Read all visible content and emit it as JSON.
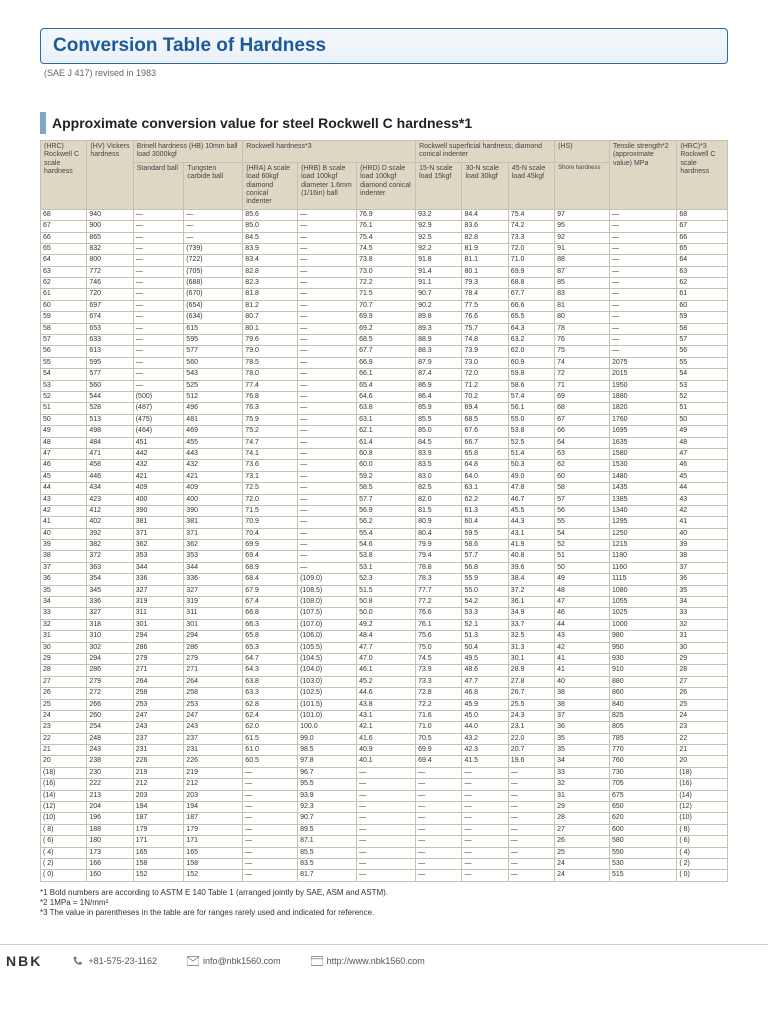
{
  "title": "Conversion Table of Hardness",
  "subtitle": "(SAE J 417) revised in 1983",
  "section_title": "Approximate conversion value for steel Rockwell C hardness*1",
  "headers": {
    "grp_brinell": "Brinell hardness (HB) 10mm ball load 3000kgf",
    "grp_rockwell": "Rockwell hardness*3",
    "grp_super": "Rockwell superficial hardness; diamond conical indenter",
    "grp_hs": "(HS)",
    "c1": "(HRC) Rockwell C scale hardness",
    "c2": "(HV) Vickers hardness",
    "c3": "Standard ball",
    "c4": "Tungsten carbide ball",
    "c5": "(HRA) A scale load 60kgf diamond conical indenter",
    "c6": "(HRB) B scale load 100kgf diameter 1.6mm (1/16in) ball",
    "c7": "(HRD) D scale load 100kgf diamond conical indenter",
    "c8": "15-N scale load 15kgf",
    "c9": "30-N scale load 30kgf",
    "c10": "45-N scale load 45kgf",
    "c11": "Shore hardness",
    "c12": "Tensile strength*2 (approximate value) MPa",
    "c13": "(HRC)*3 Rockwell C scale hardness"
  },
  "rows": [
    [
      "68",
      "940",
      "—",
      "—",
      "85.6",
      "—",
      "76.9",
      "93.2",
      "84.4",
      "75.4",
      "97",
      "—",
      "68"
    ],
    [
      "67",
      "900",
      "—",
      "—",
      "85.0",
      "—",
      "76.1",
      "92.9",
      "83.6",
      "74.2",
      "95",
      "—",
      "67"
    ],
    [
      "66",
      "865",
      "—",
      "—",
      "84.5",
      "—",
      "75.4",
      "92.5",
      "82.8",
      "73.3",
      "92",
      "—",
      "66"
    ],
    [
      "65",
      "832",
      "—",
      "(739)",
      "83.9",
      "—",
      "74.5",
      "92.2",
      "81.9",
      "72.0",
      "91",
      "—",
      "65"
    ],
    [
      "64",
      "800",
      "—",
      "(722)",
      "83.4",
      "—",
      "73.8",
      "91.8",
      "81.1",
      "71.0",
      "88",
      "—",
      "64"
    ],
    [
      "63",
      "772",
      "—",
      "(705)",
      "82.8",
      "—",
      "73.0",
      "91.4",
      "80.1",
      "69.9",
      "87",
      "—",
      "63"
    ],
    [
      "62",
      "746",
      "—",
      "(688)",
      "82.3",
      "—",
      "72.2",
      "91.1",
      "79.3",
      "68.8",
      "85",
      "—",
      "62"
    ],
    [
      "61",
      "720",
      "—",
      "(670)",
      "81.8",
      "—",
      "71.5",
      "90.7",
      "78.4",
      "67.7",
      "83",
      "—",
      "61"
    ],
    [
      "60",
      "697",
      "—",
      "(654)",
      "81.2",
      "—",
      "70.7",
      "90.2",
      "77.5",
      "66.6",
      "81",
      "—",
      "60"
    ],
    [
      "59",
      "674",
      "—",
      "(634)",
      "80.7",
      "—",
      "69.9",
      "89.8",
      "76.6",
      "65.5",
      "80",
      "—",
      "59"
    ],
    [
      "58",
      "653",
      "—",
      "615",
      "80.1",
      "—",
      "69.2",
      "89.3",
      "75.7",
      "64.3",
      "78",
      "—",
      "58"
    ],
    [
      "57",
      "633",
      "—",
      "595",
      "79.6",
      "—",
      "68.5",
      "88.9",
      "74.8",
      "63.2",
      "76",
      "—",
      "57"
    ],
    [
      "56",
      "613",
      "—",
      "577",
      "79.0",
      "—",
      "67.7",
      "88.3",
      "73.9",
      "62.0",
      "75",
      "—",
      "56"
    ],
    [
      "55",
      "595",
      "—",
      "560",
      "78.5",
      "—",
      "66.9",
      "87.9",
      "73.0",
      "60.9",
      "74",
      "2075",
      "55"
    ],
    [
      "54",
      "577",
      "—",
      "543",
      "78.0",
      "—",
      "66.1",
      "87.4",
      "72.0",
      "59.8",
      "72",
      "2015",
      "54"
    ],
    [
      "53",
      "560",
      "—",
      "525",
      "77.4",
      "—",
      "65.4",
      "86.9",
      "71.2",
      "58.6",
      "71",
      "1950",
      "53"
    ],
    [
      "52",
      "544",
      "(500)",
      "512",
      "76.8",
      "—",
      "64.6",
      "86.4",
      "70.2",
      "57.4",
      "69",
      "1880",
      "52"
    ],
    [
      "51",
      "528",
      "(487)",
      "496",
      "76.3",
      "—",
      "63.8",
      "85.9",
      "69.4",
      "56.1",
      "68",
      "1820",
      "51"
    ],
    [
      "50",
      "513",
      "(475)",
      "481",
      "75.9",
      "—",
      "63.1",
      "85.5",
      "68.5",
      "55.0",
      "67",
      "1760",
      "50"
    ],
    [
      "49",
      "498",
      "(464)",
      "469",
      "75.2",
      "—",
      "62.1",
      "85.0",
      "67.6",
      "53.8",
      "66",
      "1695",
      "49"
    ],
    [
      "48",
      "484",
      "451",
      "455",
      "74.7",
      "—",
      "61.4",
      "84.5",
      "66.7",
      "52.5",
      "64",
      "1635",
      "48"
    ],
    [
      "47",
      "471",
      "442",
      "443",
      "74.1",
      "—",
      "60.8",
      "83.9",
      "65.8",
      "51.4",
      "63",
      "1580",
      "47"
    ],
    [
      "46",
      "458",
      "432",
      "432",
      "73.6",
      "—",
      "60.0",
      "83.5",
      "64.8",
      "50.3",
      "62",
      "1530",
      "46"
    ],
    [
      "45",
      "446",
      "421",
      "421",
      "73.1",
      "—",
      "59.2",
      "83.0",
      "64.0",
      "49.0",
      "60",
      "1480",
      "45"
    ],
    [
      "44",
      "434",
      "409",
      "409",
      "72.5",
      "—",
      "58.5",
      "82.5",
      "63.1",
      "47.8",
      "58",
      "1435",
      "44"
    ],
    [
      "43",
      "423",
      "400",
      "400",
      "72.0",
      "—",
      "57.7",
      "82.0",
      "62.2",
      "46.7",
      "57",
      "1385",
      "43"
    ],
    [
      "42",
      "412",
      "390",
      "390",
      "71.5",
      "—",
      "56.9",
      "81.5",
      "61.3",
      "45.5",
      "56",
      "1340",
      "42"
    ],
    [
      "41",
      "402",
      "381",
      "381",
      "70.9",
      "—",
      "56.2",
      "80.9",
      "60.4",
      "44.3",
      "55",
      "1295",
      "41"
    ],
    [
      "40",
      "392",
      "371",
      "371",
      "70.4",
      "—",
      "55.4",
      "80.4",
      "59.5",
      "43.1",
      "54",
      "1250",
      "40"
    ],
    [
      "39",
      "382",
      "362",
      "362",
      "69.9",
      "—",
      "54.6",
      "79.9",
      "58.6",
      "41.9",
      "52",
      "1215",
      "39"
    ],
    [
      "38",
      "372",
      "353",
      "353",
      "69.4",
      "—",
      "53.8",
      "79.4",
      "57.7",
      "40.8",
      "51",
      "1180",
      "38"
    ],
    [
      "37",
      "363",
      "344",
      "344",
      "68.9",
      "—",
      "53.1",
      "78.8",
      "56.8",
      "39.6",
      "50",
      "1160",
      "37"
    ],
    [
      "36",
      "354",
      "336",
      "336",
      "68.4",
      "(109.0)",
      "52.3",
      "78.3",
      "55.9",
      "38.4",
      "49",
      "1115",
      "36"
    ],
    [
      "35",
      "345",
      "327",
      "327",
      "67.9",
      "(108.5)",
      "51.5",
      "77.7",
      "55.0",
      "37.2",
      "48",
      "1080",
      "35"
    ],
    [
      "34",
      "336",
      "319",
      "319",
      "67.4",
      "(108.0)",
      "50.8",
      "77.2",
      "54.2",
      "36.1",
      "47",
      "1055",
      "34"
    ],
    [
      "33",
      "327",
      "311",
      "311",
      "66.8",
      "(107.5)",
      "50.0",
      "76.6",
      "53.3",
      "34.9",
      "46",
      "1025",
      "33"
    ],
    [
      "32",
      "318",
      "301",
      "301",
      "66.3",
      "(107.0)",
      "49.2",
      "76.1",
      "52.1",
      "33.7",
      "44",
      "1000",
      "32"
    ],
    [
      "31",
      "310",
      "294",
      "294",
      "65.8",
      "(106.0)",
      "48.4",
      "75.6",
      "51.3",
      "32.5",
      "43",
      "980",
      "31"
    ],
    [
      "30",
      "302",
      "286",
      "286",
      "65.3",
      "(105.5)",
      "47.7",
      "75.0",
      "50.4",
      "31.3",
      "42",
      "950",
      "30"
    ],
    [
      "29",
      "294",
      "279",
      "279",
      "64.7",
      "(104.5)",
      "47.0",
      "74.5",
      "49.5",
      "30.1",
      "41",
      "930",
      "29"
    ],
    [
      "28",
      "286",
      "271",
      "271",
      "64.3",
      "(104.0)",
      "46.1",
      "73.9",
      "48.6",
      "28.9",
      "41",
      "910",
      "28"
    ],
    [
      "27",
      "279",
      "264",
      "264",
      "63.8",
      "(103.0)",
      "45.2",
      "73.3",
      "47.7",
      "27.8",
      "40",
      "880",
      "27"
    ],
    [
      "26",
      "272",
      "258",
      "258",
      "63.3",
      "(102.5)",
      "44.6",
      "72.8",
      "46.8",
      "26.7",
      "38",
      "860",
      "26"
    ],
    [
      "25",
      "266",
      "253",
      "253",
      "62.8",
      "(101.5)",
      "43.8",
      "72.2",
      "45.9",
      "25.5",
      "38",
      "840",
      "25"
    ],
    [
      "24",
      "260",
      "247",
      "247",
      "62.4",
      "(101.0)",
      "43.1",
      "71.6",
      "45.0",
      "24.3",
      "37",
      "825",
      "24"
    ],
    [
      "23",
      "254",
      "243",
      "243",
      "62.0",
      "100.0",
      "42.1",
      "71.0",
      "44.0",
      "23.1",
      "36",
      "805",
      "23"
    ],
    [
      "22",
      "248",
      "237",
      "237",
      "61.5",
      "99.0",
      "41.6",
      "70.5",
      "43.2",
      "22.0",
      "35",
      "785",
      "22"
    ],
    [
      "21",
      "243",
      "231",
      "231",
      "61.0",
      "98.5",
      "40.9",
      "69.9",
      "42.3",
      "20.7",
      "35",
      "770",
      "21"
    ],
    [
      "20",
      "238",
      "226",
      "226",
      "60.5",
      "97.8",
      "40.1",
      "69.4",
      "41.5",
      "19.6",
      "34",
      "760",
      "20"
    ],
    [
      "(18)",
      "230",
      "219",
      "219",
      "—",
      "96.7",
      "—",
      "—",
      "—",
      "—",
      "33",
      "730",
      "(18)"
    ],
    [
      "(16)",
      "222",
      "212",
      "212",
      "—",
      "95.5",
      "—",
      "—",
      "—",
      "—",
      "32",
      "705",
      "(16)"
    ],
    [
      "(14)",
      "213",
      "203",
      "203",
      "—",
      "93.9",
      "—",
      "—",
      "—",
      "—",
      "31",
      "675",
      "(14)"
    ],
    [
      "(12)",
      "204",
      "194",
      "194",
      "—",
      "92.3",
      "—",
      "—",
      "—",
      "—",
      "29",
      "650",
      "(12)"
    ],
    [
      "(10)",
      "196",
      "187",
      "187",
      "—",
      "90.7",
      "—",
      "—",
      "—",
      "—",
      "28",
      "620",
      "(10)"
    ],
    [
      "( 8)",
      "188",
      "179",
      "179",
      "—",
      "89.5",
      "—",
      "—",
      "—",
      "—",
      "27",
      "600",
      "( 8)"
    ],
    [
      "( 6)",
      "180",
      "171",
      "171",
      "—",
      "87.1",
      "—",
      "—",
      "—",
      "—",
      "26",
      "580",
      "( 6)"
    ],
    [
      "( 4)",
      "173",
      "165",
      "165",
      "—",
      "85.5",
      "—",
      "—",
      "—",
      "—",
      "25",
      "550",
      "( 4)"
    ],
    [
      "( 2)",
      "166",
      "158",
      "158",
      "—",
      "83.5",
      "—",
      "—",
      "—",
      "—",
      "24",
      "530",
      "( 2)"
    ],
    [
      "( 0)",
      "160",
      "152",
      "152",
      "—",
      "81.7",
      "—",
      "—",
      "—",
      "—",
      "24",
      "515",
      "( 0)"
    ]
  ],
  "seps": [
    5,
    10,
    15,
    20,
    25,
    30,
    35,
    40,
    45,
    50,
    55
  ],
  "notes": [
    "*1 Bold numbers are according to ASTM E 140 Table 1 (arranged jointly by SAE, ASM and ASTM).",
    "*2 1MPa = 1N/mm²",
    "*3 The value in parentheses in the table are for ranges rarely used and indicated for reference."
  ],
  "footer": {
    "logo": "NBK",
    "phone": "+81-575-23-1162",
    "email": "info@nbk1560.com",
    "url": "http://www.nbk1560.com"
  },
  "colors": {
    "header_bg": "#ded7c4",
    "border": "#c9c0b0",
    "title": "#1c5a99"
  }
}
